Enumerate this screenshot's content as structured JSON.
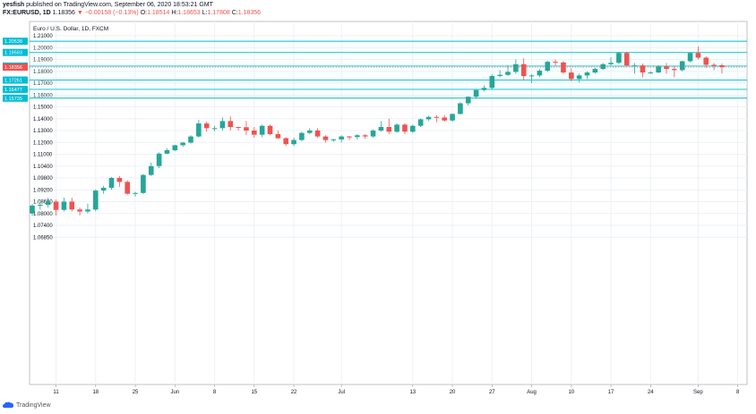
{
  "header": {
    "user": "yesfish",
    "published": "published on TradingView.com, September 06, 2020 18:53:21 GMT",
    "symbol": "FX:EURUSD, 1D",
    "last": "1.18356",
    "change": "−0.00158 (−0.13%)",
    "o_label": "O:",
    "o": "1.18514",
    "h_label": "H:",
    "h": "1.18653",
    "l_label": "L:",
    "l": "1.17808",
    "c_label": "C:",
    "c": "1.18356"
  },
  "footer": {
    "brand": "TradingView"
  },
  "colors": {
    "up": "#26a69a",
    "down": "#ef5350",
    "level": "#00bcd4",
    "grid": "#eef1f5",
    "axis": "#000000"
  },
  "chart_data": {
    "type": "candlestick",
    "title": "Euro / U.S. Dollar, 1D, FXCM",
    "price_axis_labels": [
      "1.21000",
      "1.20000",
      "1.19000",
      "1.18000",
      "1.17000",
      "1.16000",
      "1.15000",
      "1.14000",
      "1.13000",
      "1.12000",
      "1.11000",
      "1.10400",
      "1.09800",
      "1.09200",
      "1.08600",
      "1.08000",
      "1.07400",
      "1.06850"
    ],
    "time_axis_labels": [
      {
        "label": "11",
        "i": 3
      },
      {
        "label": "18",
        "i": 8
      },
      {
        "label": "25",
        "i": 13
      },
      {
        "label": "Jun",
        "i": 18
      },
      {
        "label": "8",
        "i": 23
      },
      {
        "label": "15",
        "i": 28
      },
      {
        "label": "22",
        "i": 33
      },
      {
        "label": "Jul",
        "i": 39
      },
      {
        "label": "13",
        "i": 48
      },
      {
        "label": "20",
        "i": 53
      },
      {
        "label": "27",
        "i": 58
      },
      {
        "label": "Aug",
        "i": 63
      },
      {
        "label": "10",
        "i": 68
      },
      {
        "label": "17",
        "i": 73
      },
      {
        "label": "24",
        "i": 78
      },
      {
        "label": "Sep",
        "i": 84
      },
      {
        "label": "8",
        "i": 89
      }
    ],
    "levels": [
      "1.20538",
      "1.19593",
      "1.18442",
      "1.17261",
      "1.16477",
      "1.15735"
    ],
    "current_price": "1.18356",
    "candles": [
      [
        1.08,
        1.0848,
        1.0788,
        1.084
      ],
      [
        1.084,
        1.087,
        1.082,
        1.0844
      ],
      [
        1.0844,
        1.088,
        1.083,
        1.0862
      ],
      [
        1.086,
        1.087,
        1.079,
        1.0818
      ],
      [
        1.0818,
        1.088,
        1.081,
        1.086
      ],
      [
        1.086,
        1.088,
        1.081,
        1.082
      ],
      [
        1.082,
        1.083,
        1.079,
        1.081
      ],
      [
        1.081,
        1.085,
        1.08,
        1.082
      ],
      [
        1.082,
        1.0922,
        1.081,
        1.0916
      ],
      [
        1.0916,
        1.094,
        1.09,
        1.093
      ],
      [
        1.093,
        1.0985,
        1.092,
        1.098
      ],
      [
        1.098,
        1.099,
        1.0935,
        1.096
      ],
      [
        1.096,
        1.0968,
        1.0895,
        1.09
      ],
      [
        1.09,
        1.091,
        1.0885,
        1.0904
      ],
      [
        1.0904,
        1.1,
        1.0898,
        1.0995
      ],
      [
        1.0995,
        1.1058,
        1.099,
        1.104
      ],
      [
        1.104,
        1.1115,
        1.103,
        1.1105
      ],
      [
        1.1105,
        1.115,
        1.11,
        1.1134
      ],
      [
        1.1134,
        1.118,
        1.1125,
        1.1176
      ],
      [
        1.1176,
        1.1205,
        1.116,
        1.1198
      ],
      [
        1.1198,
        1.126,
        1.119,
        1.125
      ],
      [
        1.125,
        1.139,
        1.124,
        1.136
      ],
      [
        1.136,
        1.1375,
        1.129,
        1.132
      ],
      [
        1.132,
        1.134,
        1.1295,
        1.132
      ],
      [
        1.132,
        1.141,
        1.13,
        1.138
      ],
      [
        1.138,
        1.142,
        1.13,
        1.133
      ],
      [
        1.133,
        1.133,
        1.13,
        1.1328
      ],
      [
        1.1328,
        1.138,
        1.126,
        1.13
      ],
      [
        1.13,
        1.133,
        1.124,
        1.1265
      ],
      [
        1.1265,
        1.135,
        1.1245,
        1.134
      ],
      [
        1.134,
        1.135,
        1.126,
        1.127
      ],
      [
        1.127,
        1.13,
        1.123,
        1.1235
      ],
      [
        1.1235,
        1.1245,
        1.117,
        1.1185
      ],
      [
        1.1185,
        1.124,
        1.117,
        1.122
      ],
      [
        1.122,
        1.129,
        1.121,
        1.128
      ],
      [
        1.128,
        1.132,
        1.127,
        1.13
      ],
      [
        1.13,
        1.132,
        1.124,
        1.125
      ],
      [
        1.125,
        1.126,
        1.12,
        1.122
      ],
      [
        1.122,
        1.123,
        1.1205,
        1.1225
      ],
      [
        1.1225,
        1.126,
        1.12,
        1.125
      ],
      [
        1.125,
        1.1255,
        1.122,
        1.1245
      ],
      [
        1.1245,
        1.127,
        1.1225,
        1.126
      ],
      [
        1.126,
        1.127,
        1.123,
        1.125
      ],
      [
        1.125,
        1.131,
        1.124,
        1.13
      ],
      [
        1.13,
        1.138,
        1.129,
        1.133
      ],
      [
        1.133,
        1.14,
        1.127,
        1.129
      ],
      [
        1.129,
        1.136,
        1.128,
        1.135
      ],
      [
        1.135,
        1.136,
        1.127,
        1.129
      ],
      [
        1.129,
        1.135,
        1.128,
        1.134
      ],
      [
        1.134,
        1.14,
        1.133,
        1.1395
      ],
      [
        1.1395,
        1.1425,
        1.138,
        1.1415
      ],
      [
        1.1415,
        1.143,
        1.137,
        1.141
      ],
      [
        1.141,
        1.143,
        1.1375,
        1.1385
      ],
      [
        1.1385,
        1.1445,
        1.1375,
        1.144
      ],
      [
        1.144,
        1.154,
        1.1435,
        1.153
      ],
      [
        1.153,
        1.159,
        1.151,
        1.1585
      ],
      [
        1.1585,
        1.165,
        1.157,
        1.1642
      ],
      [
        1.1642,
        1.168,
        1.163,
        1.166
      ],
      [
        1.166,
        1.1775,
        1.165,
        1.176
      ],
      [
        1.176,
        1.181,
        1.175,
        1.177
      ],
      [
        1.177,
        1.185,
        1.176,
        1.1795
      ],
      [
        1.1795,
        1.19,
        1.178,
        1.186
      ],
      [
        1.186,
        1.191,
        1.1725,
        1.176
      ],
      [
        1.176,
        1.1775,
        1.17,
        1.1765
      ],
      [
        1.1765,
        1.182,
        1.175,
        1.1805
      ],
      [
        1.1805,
        1.189,
        1.1795,
        1.188
      ],
      [
        1.188,
        1.19,
        1.185,
        1.1875
      ],
      [
        1.1875,
        1.1885,
        1.178,
        1.179
      ],
      [
        1.179,
        1.1825,
        1.1715,
        1.1735
      ],
      [
        1.1735,
        1.178,
        1.1705,
        1.1765
      ],
      [
        1.1765,
        1.18,
        1.1735,
        1.179
      ],
      [
        1.179,
        1.183,
        1.178,
        1.182
      ],
      [
        1.182,
        1.187,
        1.181,
        1.186
      ],
      [
        1.186,
        1.192,
        1.185,
        1.1872
      ],
      [
        1.1872,
        1.1965,
        1.186,
        1.1955
      ],
      [
        1.1955,
        1.1965,
        1.184,
        1.185
      ],
      [
        1.185,
        1.187,
        1.178,
        1.185
      ],
      [
        1.185,
        1.1865,
        1.175,
        1.179
      ],
      [
        1.179,
        1.18,
        1.178,
        1.179
      ],
      [
        1.179,
        1.185,
        1.1785,
        1.184
      ],
      [
        1.184,
        1.187,
        1.178,
        1.182
      ],
      [
        1.182,
        1.184,
        1.175,
        1.181
      ],
      [
        1.181,
        1.189,
        1.18,
        1.1885
      ],
      [
        1.1885,
        1.196,
        1.1875,
        1.1955
      ],
      [
        1.1955,
        1.201,
        1.19,
        1.1915
      ],
      [
        1.1915,
        1.1925,
        1.183,
        1.1855
      ],
      [
        1.1855,
        1.187,
        1.181,
        1.185
      ],
      [
        1.1851,
        1.1865,
        1.1781,
        1.1836
      ]
    ]
  }
}
